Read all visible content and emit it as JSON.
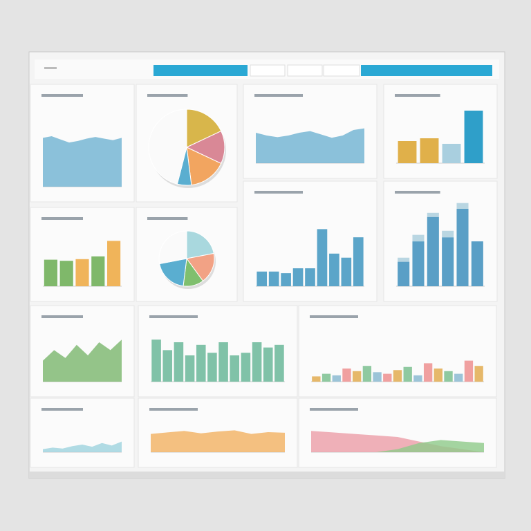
{
  "panels": [
    {
      "type": "area",
      "ylim": [
        0,
        100
      ],
      "series": [
        {
          "color": "#6fb3d2",
          "values": [
            62,
            64,
            60,
            56,
            58,
            61,
            63,
            61,
            59,
            62
          ]
        }
      ]
    },
    {
      "type": "pie",
      "values": [
        18,
        14,
        16,
        6,
        46
      ],
      "colors": [
        "#d8b64b",
        "#d98896",
        "#f2a560",
        "#5aaed0",
        "#fafafa"
      ]
    },
    {
      "type": "area",
      "ylim": [
        0,
        100
      ],
      "series": [
        {
          "color": "#6fb3d2",
          "values": [
            55,
            50,
            47,
            50,
            55,
            58,
            52,
            46,
            50,
            60,
            63
          ]
        }
      ]
    },
    {
      "type": "bar",
      "ylim": [
        0,
        100
      ],
      "colors": [
        "#e0b04a",
        "#e0b04a",
        "#a9cfdf",
        "#2f9fc9"
      ],
      "series": [
        {
          "color": "#2f9fc9",
          "values": [
            40,
            45,
            35,
            95
          ]
        }
      ]
    },
    {
      "type": "bar",
      "ylim": [
        0,
        100
      ],
      "colors": [
        "#7fb86a",
        "#7fb86a",
        "#f0b45a",
        "#7fb86a",
        "#f0b45a"
      ],
      "series": [
        {
          "color": "#7fb86a",
          "values": [
            48,
            46,
            49,
            54,
            82
          ]
        }
      ]
    },
    {
      "type": "pie",
      "values": [
        22,
        18,
        12,
        20,
        28
      ],
      "colors": [
        "#a9d8de",
        "#f2a285",
        "#7fbf6e",
        "#5aaed0",
        "#fafafa"
      ]
    },
    {
      "type": "bar",
      "ylim": [
        0,
        100
      ],
      "series": [
        {
          "color": "#5ba5c9",
          "values": [
            18,
            18,
            16,
            22,
            22,
            70,
            40,
            35,
            60
          ]
        }
      ]
    },
    {
      "type": "stacked",
      "ylim": [
        0,
        100
      ],
      "series": [
        {
          "color": "#5a9fc6",
          "values": [
            30,
            55,
            85,
            60,
            95,
            55
          ]
        },
        {
          "color": "#b9d6e2",
          "values": [
            5,
            8,
            5,
            8,
            7,
            0
          ]
        }
      ]
    },
    {
      "type": "area",
      "ylim": [
        0,
        100
      ],
      "series": [
        {
          "color": "#7bb66d",
          "values": [
            40,
            60,
            45,
            70,
            50,
            75,
            60,
            80
          ]
        }
      ]
    },
    {
      "type": "bar",
      "ylim": [
        0,
        100
      ],
      "series": [
        {
          "color": "#80c2a8",
          "values": [
            80,
            60,
            75,
            50,
            70,
            55,
            75,
            50,
            55,
            75,
            65,
            70
          ]
        }
      ]
    },
    {
      "type": "bar",
      "ylim": [
        0,
        100
      ],
      "colors": [
        "#e6b86a",
        "#8fc9a0",
        "#9cc4d8",
        "#f0a0a0"
      ],
      "series": [
        {
          "color": "#e6b86a",
          "values": [
            10,
            15,
            12,
            25,
            20,
            30,
            18,
            15,
            22,
            28,
            12,
            35,
            25,
            20,
            15,
            40,
            30
          ]
        }
      ]
    },
    {
      "type": "area",
      "ylim": [
        0,
        100
      ],
      "series": [
        {
          "color": "#9dd3df",
          "values": [
            10,
            15,
            12,
            20,
            25,
            18,
            30,
            22,
            35
          ]
        }
      ]
    },
    {
      "type": "area",
      "ylim": [
        0,
        100
      ],
      "series": [
        {
          "color": "#f2b262",
          "values": [
            60,
            65,
            70,
            62,
            68,
            72,
            60,
            66,
            64
          ]
        }
      ]
    },
    {
      "type": "area",
      "ylim": [
        0,
        100
      ],
      "series": [
        {
          "color": "#ec9ea8",
          "values": [
            70,
            65,
            60,
            55,
            50,
            35,
            20,
            10,
            0
          ]
        },
        {
          "color": "#8fcb8a",
          "values": [
            0,
            0,
            0,
            0,
            10,
            30,
            40,
            35,
            30
          ]
        }
      ]
    }
  ]
}
